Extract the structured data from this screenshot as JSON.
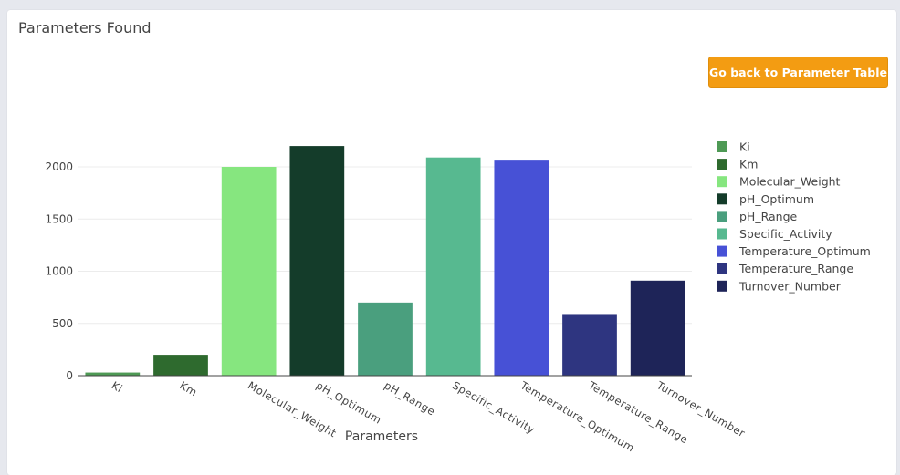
{
  "panel": {
    "title": "Parameters Found"
  },
  "actions": {
    "back_label": "Go back to Parameter Table"
  },
  "chart_data": {
    "type": "bar",
    "categories": [
      "Ki",
      "Km",
      "Molecular_Weight",
      "pH_Optimum",
      "pH_Range",
      "Specific_Activity",
      "Temperature_Optimum",
      "Temperature_Range",
      "Turnover_Number"
    ],
    "values": [
      30,
      200,
      2000,
      2200,
      700,
      2090,
      2060,
      590,
      910
    ],
    "colors": [
      "#4e9a55",
      "#2e6a2e",
      "#86e67f",
      "#143c2a",
      "#4a9f7e",
      "#57b990",
      "#4751d6",
      "#2e3580",
      "#1e2458"
    ],
    "xlabel": "Parameters",
    "ylabel": "",
    "ylim": [
      0,
      2300
    ],
    "yticks": [
      0,
      500,
      1000,
      1500,
      2000
    ],
    "grid": true,
    "legend_position": "right"
  }
}
